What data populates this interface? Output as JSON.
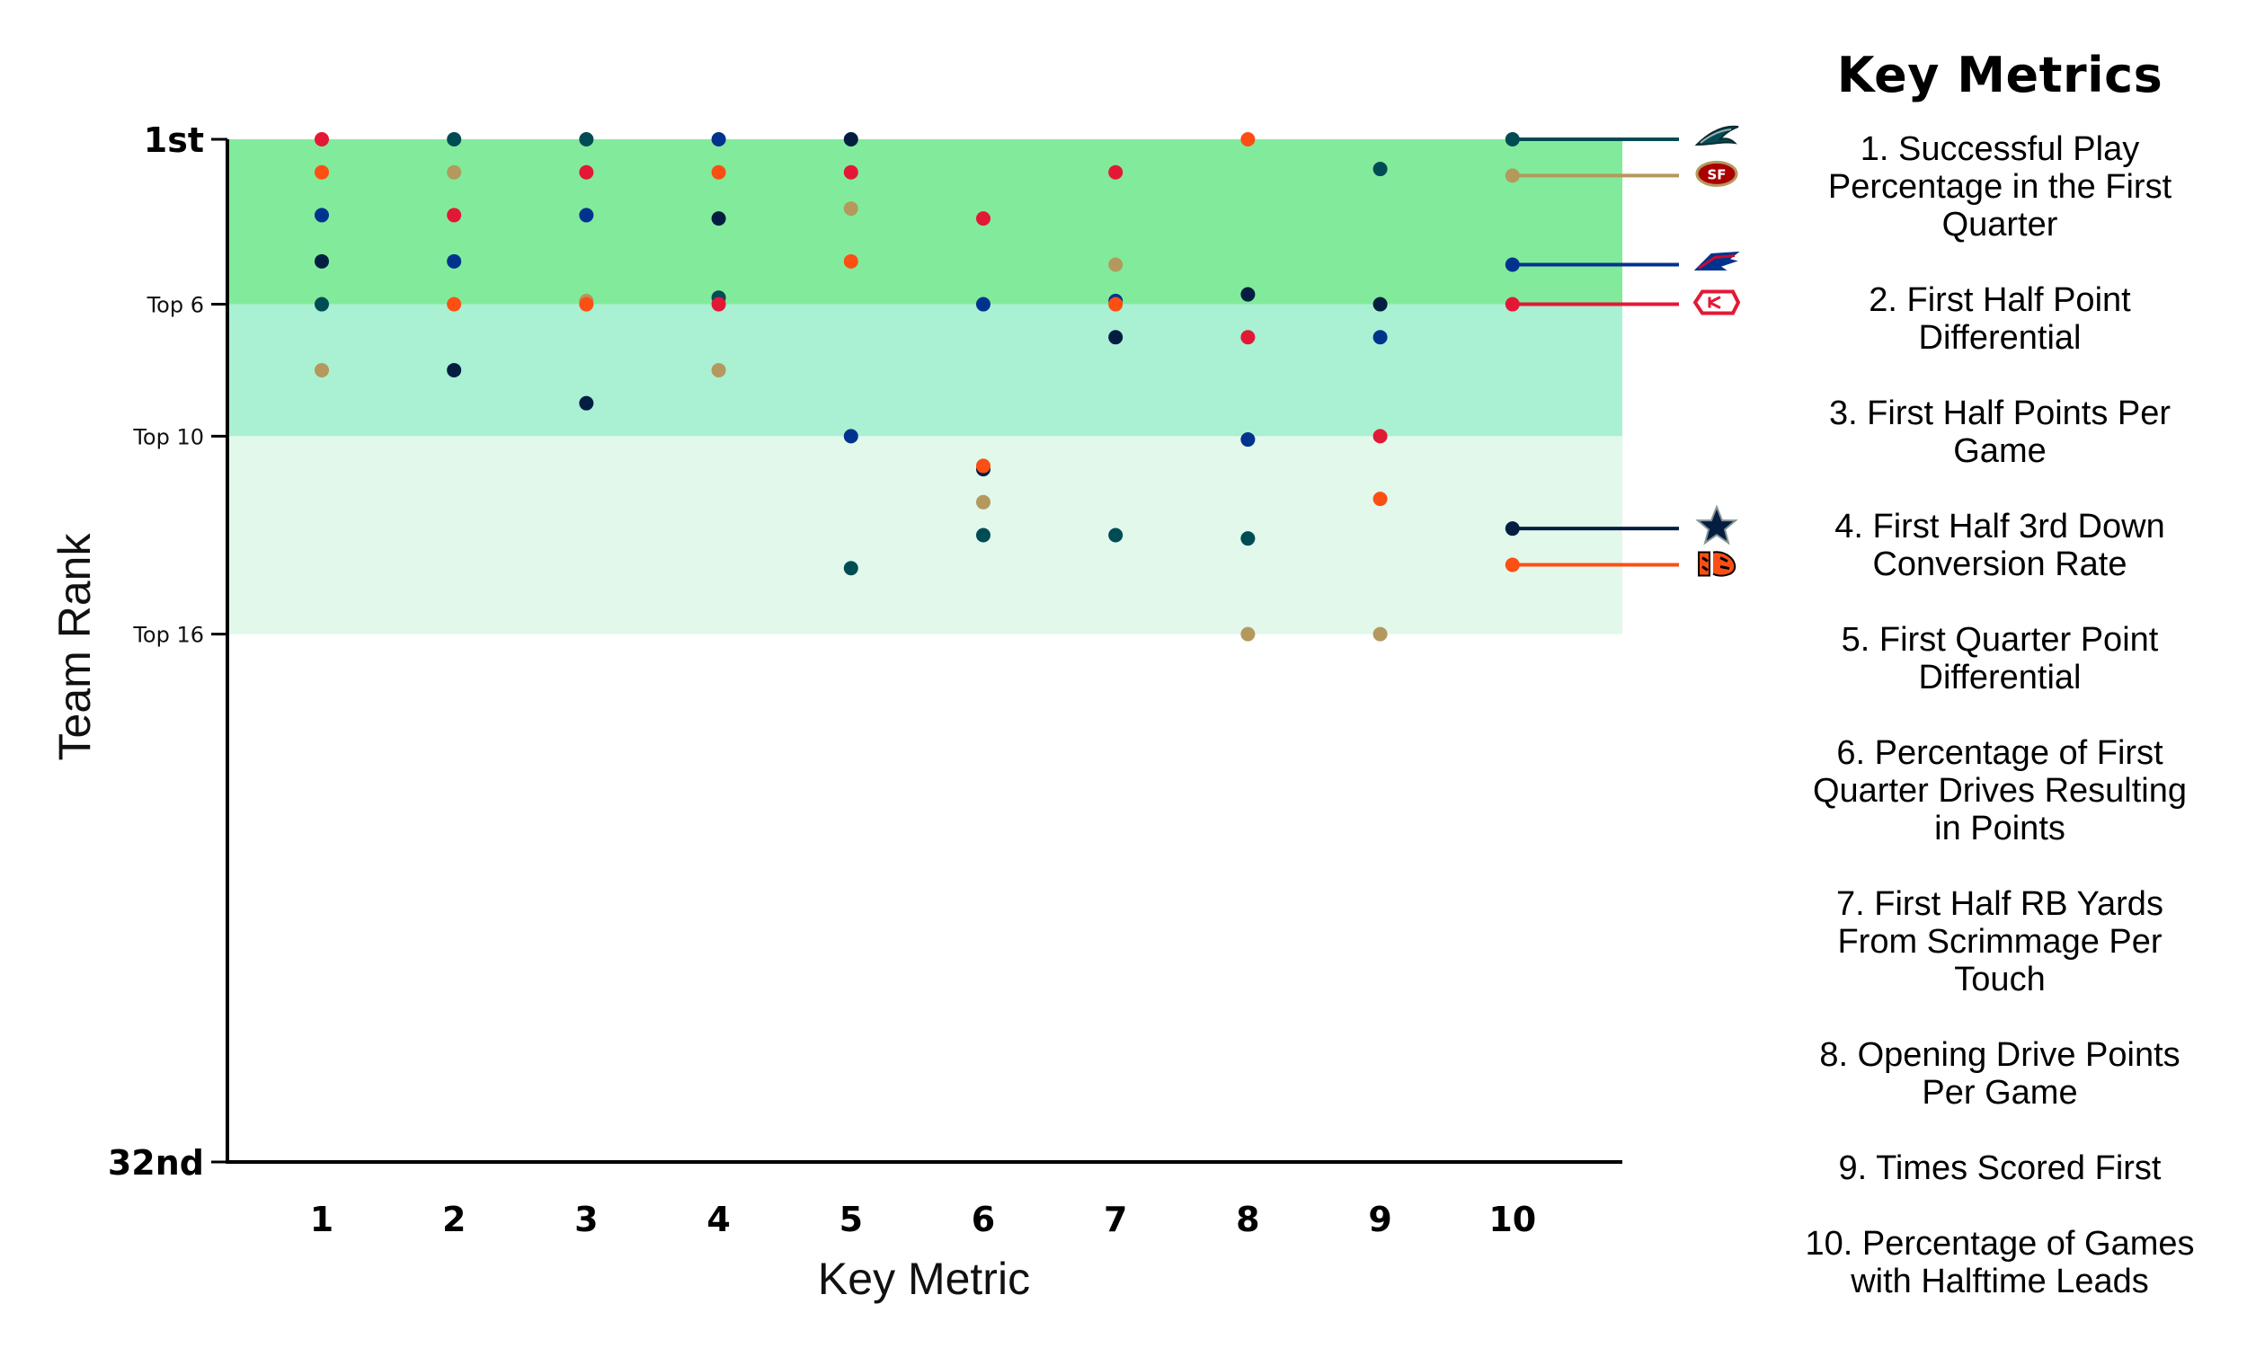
{
  "chart_data": {
    "type": "scatter",
    "xlabel": "Key Metric",
    "ylabel": "Team Rank",
    "x_ticks": [
      "1",
      "2",
      "3",
      "4",
      "5",
      "6",
      "7",
      "8",
      "9",
      "10"
    ],
    "y_ticks": [
      {
        "rank": 1,
        "label": "1st",
        "style": "big"
      },
      {
        "rank": 6,
        "label": "Top 6",
        "style": "small"
      },
      {
        "rank": 10,
        "label": "Top 10",
        "style": "small"
      },
      {
        "rank": 16,
        "label": "Top 16",
        "style": "small"
      },
      {
        "rank": 32,
        "label": "32nd",
        "style": "big"
      }
    ],
    "ylim": [
      1,
      32
    ],
    "y_inverted": true,
    "bands": [
      {
        "from": 1,
        "to": 6,
        "color": "#81eb9b"
      },
      {
        "from": 6,
        "to": 10,
        "color": "#aaf0d3"
      },
      {
        "from": 10,
        "to": 16,
        "color": "#e1f8eb"
      }
    ],
    "series": [
      {
        "team_icon": "eagles-logo-icon",
        "color": "#004c54",
        "ranks": [
          6,
          1,
          1,
          5.8,
          14,
          13,
          13,
          13.1,
          1.9,
          1
        ]
      },
      {
        "team_icon": "49ers-logo-icon",
        "color": "#b3995d",
        "ranks": [
          8,
          2,
          5.9,
          8,
          3.1,
          12,
          4.8,
          16,
          16,
          2.1
        ]
      },
      {
        "team_icon": "bills-logo-icon",
        "color": "#00338d",
        "ranks": [
          3.3,
          4.7,
          3.3,
          1,
          10,
          6,
          5.9,
          10.1,
          7,
          4.8
        ]
      },
      {
        "team_icon": "chiefs-logo-icon",
        "color": "#e31837",
        "ranks": [
          1,
          3.3,
          2,
          6,
          2,
          3.4,
          2,
          7,
          10,
          6
        ]
      },
      {
        "team_icon": "cowboys-logo-icon",
        "color": "#041e42",
        "ranks": [
          4.7,
          8,
          9,
          3.4,
          1,
          11,
          7,
          5.7,
          6,
          12.8
        ]
      },
      {
        "team_icon": "bengals-logo-icon",
        "color": "#fb4f14",
        "ranks": [
          2,
          6,
          6,
          2,
          4.7,
          10.9,
          6,
          1,
          11.9,
          13.9
        ]
      }
    ]
  },
  "key_panel": {
    "title": "Key Metrics",
    "items": [
      "1. Successful Play Percentage in the First Quarter",
      "2. First Half Point Differential",
      "3. First Half Points Per Game",
      "4. First Half 3rd Down Conversion Rate",
      "5. First Quarter Point Differential",
      "6. Percentage of First Quarter Drives Resulting in Points",
      "7. First Half RB Yards From Scrimmage Per Touch",
      "8. Opening Drive Points Per Game",
      "9. Times Scored First",
      "10. Percentage of Games with Halftime Leads"
    ]
  }
}
